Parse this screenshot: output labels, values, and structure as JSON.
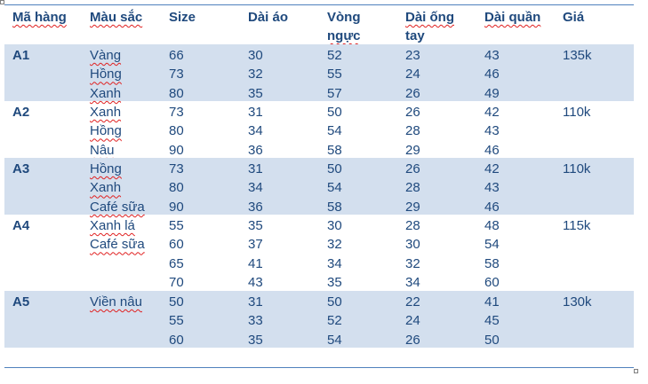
{
  "table": {
    "headers": [
      "Mã hàng",
      "Màu sắc",
      "Size",
      "Dài áo",
      "Vòng ngực",
      "Dài ống tay",
      "Dài quần",
      "Giá"
    ],
    "header_lines": [
      [
        "Mã hàng"
      ],
      [
        "Màu sắc"
      ],
      [
        "Size"
      ],
      [
        "Dài áo"
      ],
      [
        "Vòng",
        "ngực"
      ],
      [
        "Dài ống",
        "tay"
      ],
      [
        "Dài quần"
      ],
      [
        "Giá"
      ]
    ],
    "groups": [
      {
        "code": "A1",
        "colors": [
          "Vàng",
          "Hồng",
          "Xanh"
        ],
        "price": "135k",
        "shaded": true,
        "rows": [
          [
            "66",
            "30",
            "52",
            "23",
            "43"
          ],
          [
            "73",
            "32",
            "55",
            "24",
            "46"
          ],
          [
            "80",
            "35",
            "57",
            "26",
            "49"
          ]
        ]
      },
      {
        "code": "A2",
        "colors": [
          "Xanh",
          "Hồng",
          "Nâu"
        ],
        "price": "110k",
        "shaded": false,
        "rows": [
          [
            "73",
            "31",
            "50",
            "26",
            "42"
          ],
          [
            "80",
            "34",
            "54",
            "28",
            "43"
          ],
          [
            "90",
            "36",
            "58",
            "29",
            "46"
          ]
        ]
      },
      {
        "code": "A3",
        "colors": [
          "Hồng",
          "Xanh",
          "Café sữa"
        ],
        "price": "110k",
        "shaded": true,
        "rows": [
          [
            "73",
            "31",
            "50",
            "26",
            "42"
          ],
          [
            "80",
            "34",
            "54",
            "28",
            "43"
          ],
          [
            "90",
            "36",
            "58",
            "29",
            "46"
          ]
        ]
      },
      {
        "code": "A4",
        "colors": [
          "Xanh lá",
          "Café sữa"
        ],
        "price": "115k",
        "shaded": false,
        "rows": [
          [
            "55",
            "35",
            "30",
            "28",
            "48"
          ],
          [
            "60",
            "37",
            "32",
            "30",
            "54"
          ],
          [
            "65",
            "41",
            "34",
            "32",
            "58"
          ],
          [
            "70",
            "43",
            "35",
            "34",
            "60"
          ]
        ]
      },
      {
        "code": "A5",
        "colors": [
          "Viền nâu"
        ],
        "price": "130k",
        "shaded": true,
        "rows": [
          [
            "50",
            "31",
            "50",
            "22",
            "41"
          ],
          [
            "55",
            "33",
            "52",
            "24",
            "45"
          ],
          [
            "60",
            "35",
            "54",
            "26",
            "50"
          ]
        ]
      }
    ]
  },
  "colors": {
    "text": "#1f497d",
    "band": "#d3dfee",
    "rule": "#4f81bd",
    "spellcheck": "#e02020"
  }
}
